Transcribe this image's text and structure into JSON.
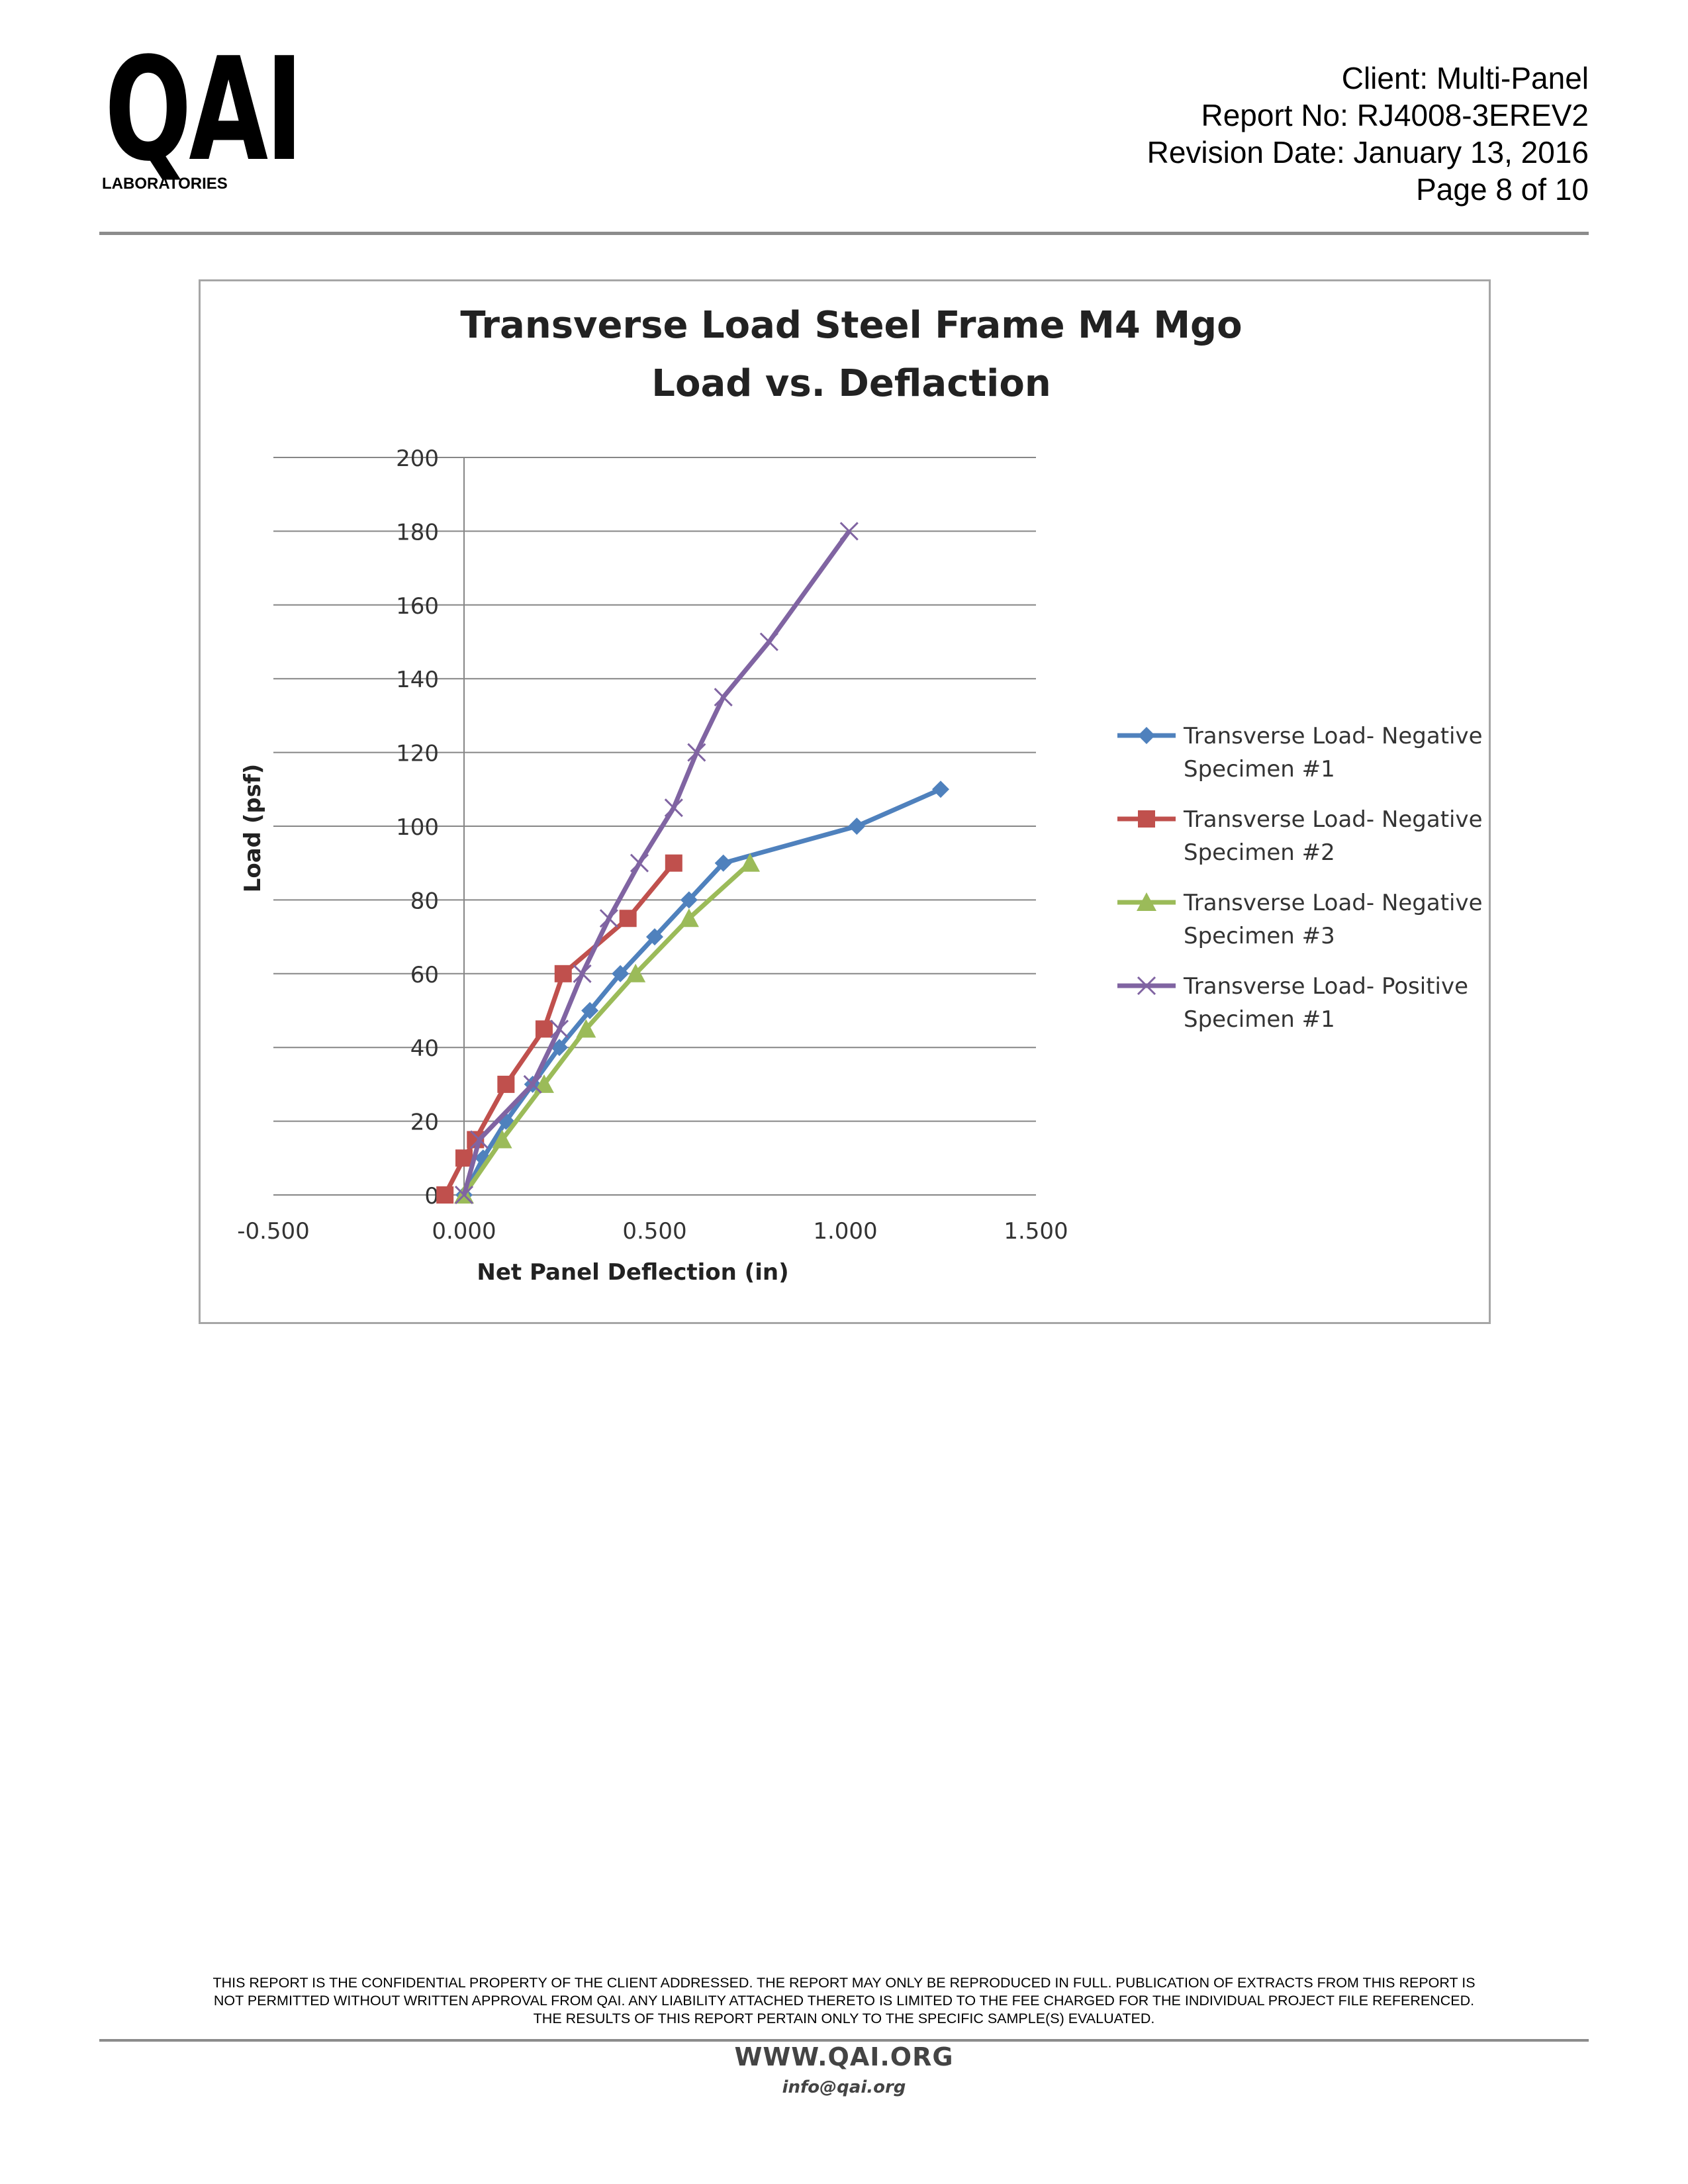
{
  "logo": {
    "mark": "QAI",
    "subtitle": "LABORATORIES"
  },
  "header": {
    "client": "Client: Multi-Panel",
    "report_no": "Report No: RJ4008-3EREV2",
    "revision_date": "Revision Date: January 13, 2016",
    "page": "Page 8 of 10"
  },
  "footer": {
    "disclaimer_line1": "THIS REPORT IS THE CONFIDENTIAL PROPERTY OF THE CLIENT ADDRESSED. THE REPORT MAY ONLY BE REPRODUCED IN FULL. PUBLICATION OF EXTRACTS FROM THIS REPORT IS",
    "disclaimer_line2": "NOT PERMITTED WITHOUT WRITTEN APPROVAL FROM QAI. ANY LIABILITY ATTACHED THERETO IS LIMITED TO THE FEE CHARGED FOR THE INDIVIDUAL PROJECT FILE REFERENCED.",
    "disclaimer_line3": "THE RESULTS OF THIS REPORT PERTAIN ONLY TO THE SPECIFIC SAMPLE(S) EVALUATED.",
    "website": "WWW.QAI.ORG",
    "email": "info@qai.org"
  },
  "chart_data": {
    "type": "scatter",
    "title_lines": [
      "Transverse Load Steel Frame M4 Mgo",
      "Load vs. Deflaction"
    ],
    "xlabel": "Net Panel Deflection (in)",
    "ylabel": "Load (psf)",
    "xlim": [
      -0.5,
      1.5
    ],
    "ylim": [
      0,
      200
    ],
    "xticks": [
      -0.5,
      0.0,
      0.5,
      1.0,
      1.5
    ],
    "xtick_labels": [
      "-0.500",
      "0.000",
      "0.500",
      "1.000",
      "1.500"
    ],
    "yticks": [
      0,
      20,
      40,
      60,
      80,
      100,
      120,
      140,
      160,
      180,
      200
    ],
    "ytick_labels": [
      "0",
      "20",
      "40",
      "60",
      "80",
      "100",
      "120",
      "140",
      "160",
      "180",
      "200"
    ],
    "grid": "horizontal",
    "legend_position": "right",
    "series": [
      {
        "name_lines": [
          "Transverse Load- Negative",
          "Specimen #1"
        ],
        "color": "#4f81bd",
        "marker": "diamond",
        "points": [
          [
            0.0,
            0
          ],
          [
            0.05,
            10
          ],
          [
            0.11,
            20
          ],
          [
            0.18,
            30
          ],
          [
            0.25,
            40
          ],
          [
            0.33,
            50
          ],
          [
            0.41,
            60
          ],
          [
            0.5,
            70
          ],
          [
            0.59,
            80
          ],
          [
            0.68,
            90
          ],
          [
            1.03,
            100
          ],
          [
            1.25,
            110
          ]
        ]
      },
      {
        "name_lines": [
          "Transverse Load- Negative",
          "Specimen #2"
        ],
        "color": "#c0504d",
        "marker": "square",
        "points": [
          [
            -0.05,
            0
          ],
          [
            0.0,
            10
          ],
          [
            0.03,
            15
          ],
          [
            0.11,
            30
          ],
          [
            0.21,
            45
          ],
          [
            0.26,
            60
          ],
          [
            0.43,
            75
          ],
          [
            0.55,
            90
          ]
        ]
      },
      {
        "name_lines": [
          "Transverse Load- Negative",
          "Specimen #3"
        ],
        "color": "#9bbb59",
        "marker": "triangle",
        "points": [
          [
            0.0,
            0
          ],
          [
            0.1,
            15
          ],
          [
            0.21,
            30
          ],
          [
            0.32,
            45
          ],
          [
            0.45,
            60
          ],
          [
            0.59,
            75
          ],
          [
            0.75,
            90
          ]
        ]
      },
      {
        "name_lines": [
          "Transverse Load- Positive",
          "Specimen #1"
        ],
        "color": "#8064a2",
        "marker": "x",
        "points": [
          [
            0.0,
            0
          ],
          [
            0.04,
            15
          ],
          [
            0.18,
            30
          ],
          [
            0.25,
            45
          ],
          [
            0.31,
            60
          ],
          [
            0.38,
            75
          ],
          [
            0.46,
            90
          ],
          [
            0.55,
            105
          ],
          [
            0.61,
            120
          ],
          [
            0.68,
            135
          ],
          [
            0.8,
            150
          ],
          [
            1.01,
            180
          ]
        ]
      }
    ]
  }
}
